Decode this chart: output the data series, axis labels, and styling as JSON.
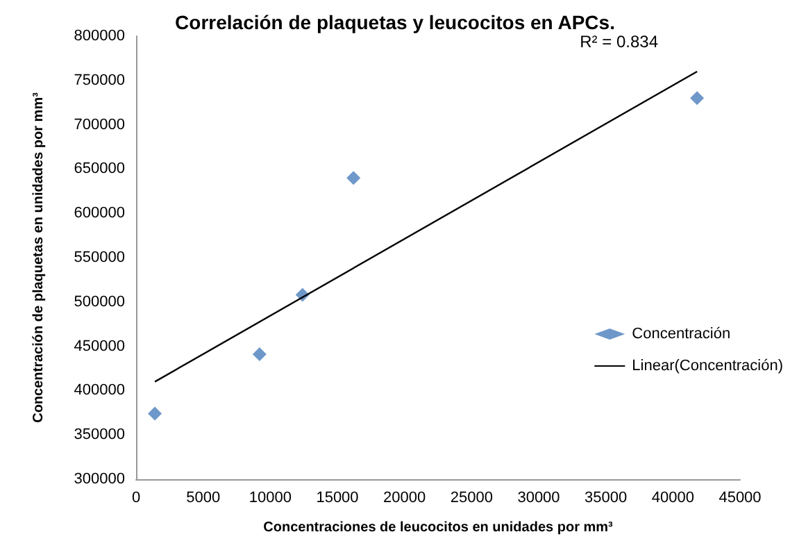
{
  "chart_data": {
    "type": "scatter",
    "title": "Correlación de plaquetas y leucocitos en APCs.",
    "xlabel": "Concentraciones de leucocitos en unidades por mm³",
    "ylabel": "Concentración de plaquetas en unidades por mm³",
    "annotations": [
      "R² = 0.834"
    ],
    "series": [
      {
        "name": "Concentración",
        "color": "#4a7ebb",
        "x": [
          1400,
          9200,
          12400,
          16200,
          41800
        ],
        "values": [
          374000,
          441000,
          508000,
          640000,
          730000
        ]
      },
      {
        "name": "Linear(Concentración)",
        "type": "line",
        "color": "#000000",
        "marker": "none",
        "x": [
          1400,
          41800
        ],
        "values": [
          410000,
          760000
        ]
      }
    ],
    "marker": "diamond",
    "xlim": [
      0,
      45000
    ],
    "xticks": [
      0,
      5000,
      10000,
      15000,
      20000,
      25000,
      30000,
      35000,
      40000,
      45000
    ],
    "ylim": [
      300000,
      800000
    ],
    "yticks": [
      300000,
      350000,
      400000,
      450000,
      500000,
      550000,
      600000,
      650000,
      700000,
      750000,
      800000
    ],
    "grid": false,
    "legend": "right"
  }
}
